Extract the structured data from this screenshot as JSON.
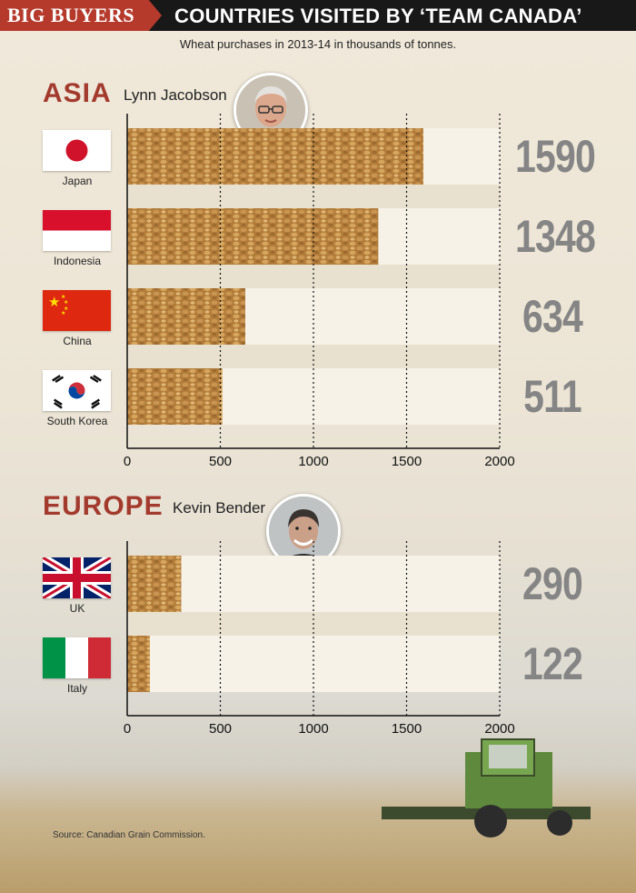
{
  "header": {
    "tag": "BIG BUYERS",
    "title": "COUNTRIES VISITED BY ‘TEAM CANADA’"
  },
  "subtitle": "Wheat purchases in 2013-14 in thousands of tonnes.",
  "source": "Source: Canadian Grain Commission.",
  "colors": {
    "accent": "#a33a2e",
    "tag_bg": "#b53a2c",
    "value_gray": "#858585",
    "wheat": "#b9843f"
  },
  "chart_data": [
    {
      "type": "bar",
      "region": "ASIA",
      "representative": "Lynn Jacobson",
      "categories": [
        "Japan",
        "Indonesia",
        "China",
        "South Korea"
      ],
      "values": [
        1590,
        1348,
        634,
        511
      ],
      "value_labels": [
        "1590",
        "1348",
        "634",
        "511"
      ],
      "xlim": [
        0,
        2000
      ],
      "xticks": [
        "0",
        "500",
        "1000",
        "1500",
        "2000"
      ],
      "orientation": "horizontal",
      "grid": "dotted vertical"
    },
    {
      "type": "bar",
      "region": "EUROPE",
      "representative": "Kevin Bender",
      "categories": [
        "UK",
        "Italy"
      ],
      "values": [
        290,
        122
      ],
      "value_labels": [
        "290",
        "122"
      ],
      "xlim": [
        0,
        2000
      ],
      "xticks": [
        "0",
        "500",
        "1000",
        "1500",
        "2000"
      ],
      "orientation": "horizontal",
      "grid": "dotted vertical"
    }
  ]
}
